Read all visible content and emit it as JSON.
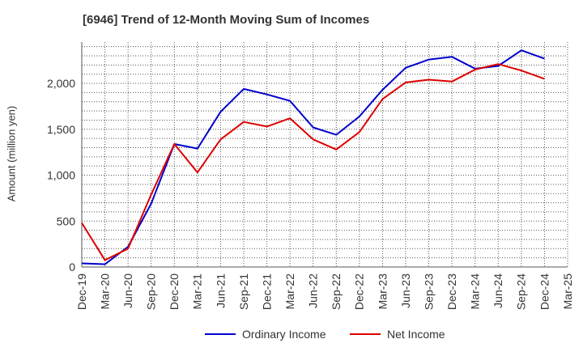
{
  "chart_data": {
    "type": "line",
    "title": "[6946]  Trend of 12-Month Moving Sum of Incomes",
    "xlabel": "",
    "ylabel": "Amount (million yen)",
    "ylim": [
      0,
      2450
    ],
    "yticks": [
      0,
      500,
      1000,
      1500,
      2000
    ],
    "ytick_labels": [
      "0",
      "500",
      "1,000",
      "1,500",
      "2,000"
    ],
    "grid": true,
    "legend_position": "bottom-center",
    "categories": [
      "Dec-19",
      "Mar-20",
      "Jun-20",
      "Sep-20",
      "Dec-20",
      "Mar-21",
      "Jun-21",
      "Sep-21",
      "Dec-21",
      "Mar-22",
      "Jun-22",
      "Sep-22",
      "Dec-22",
      "Mar-23",
      "Jun-23",
      "Sep-23",
      "Dec-23",
      "Mar-24",
      "Jun-24",
      "Sep-24",
      "Dec-24",
      "Mar-25"
    ],
    "series": [
      {
        "name": "Ordinary Income",
        "color": "#0000cc",
        "values": [
          40,
          30,
          220,
          690,
          1340,
          1290,
          1690,
          1940,
          1880,
          1810,
          1520,
          1440,
          1640,
          1930,
          2170,
          2260,
          2290,
          2160,
          2190,
          2360,
          2270,
          null
        ]
      },
      {
        "name": "Net Income",
        "color": "#dd0000",
        "values": [
          480,
          75,
          200,
          790,
          1340,
          1030,
          1390,
          1580,
          1530,
          1620,
          1390,
          1280,
          1470,
          1830,
          2010,
          2040,
          2020,
          2150,
          2210,
          2140,
          2050,
          null
        ]
      }
    ]
  }
}
